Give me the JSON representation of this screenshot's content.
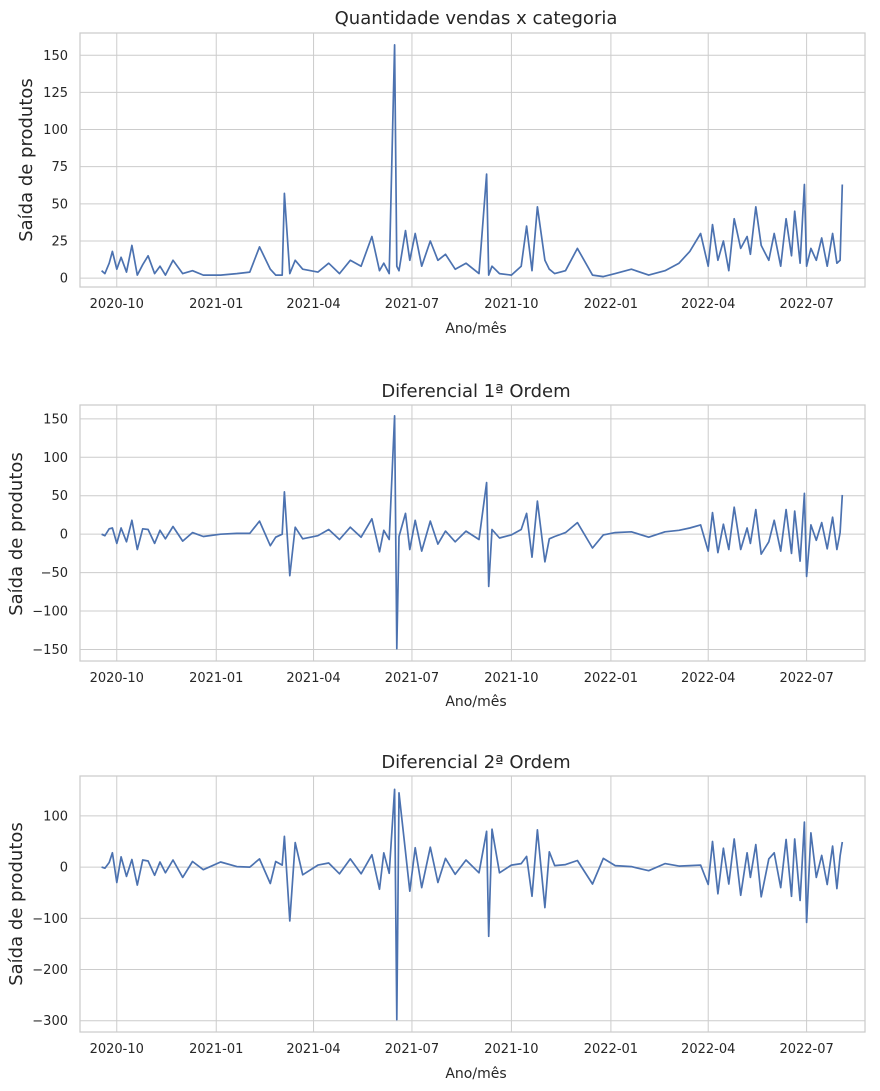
{
  "chart_data": [
    {
      "type": "line",
      "title": "Quantidade vendas x categoria",
      "xlabel": "Ano/mês",
      "ylabel": "Saída de produtos",
      "x_tick_labels": [
        "2020-10",
        "2021-01",
        "2021-04",
        "2021-07",
        "2021-10",
        "2022-01",
        "2022-04",
        "2022-07"
      ],
      "y_ticks": [
        0,
        25,
        50,
        75,
        100,
        125,
        150
      ],
      "ylim": [
        -6,
        165
      ],
      "xlim": [
        "2020-08-28",
        "2022-08-24"
      ],
      "grid": true,
      "series_color": "#4c72b0",
      "series": [
        {
          "x": [
            "2020-09-17",
            "2020-09-20",
            "2020-09-24",
            "2020-09-27",
            "2020-10-01",
            "2020-10-05",
            "2020-10-10",
            "2020-10-15",
            "2020-10-20",
            "2020-10-25",
            "2020-10-30",
            "2020-11-05",
            "2020-11-10",
            "2020-11-15",
            "2020-11-22",
            "2020-12-01",
            "2020-12-10",
            "2020-12-20",
            "2021-01-05",
            "2021-01-20",
            "2021-02-01",
            "2021-02-10",
            "2021-02-20",
            "2021-02-25",
            "2021-03-03",
            "2021-03-05",
            "2021-03-10",
            "2021-03-15",
            "2021-03-22",
            "2021-04-05",
            "2021-04-15",
            "2021-04-25",
            "2021-05-05",
            "2021-05-15",
            "2021-05-25",
            "2021-06-01",
            "2021-06-05",
            "2021-06-10",
            "2021-06-15",
            "2021-06-17",
            "2021-06-19",
            "2021-06-25",
            "2021-06-29",
            "2021-07-04",
            "2021-07-10",
            "2021-07-18",
            "2021-07-25",
            "2021-08-01",
            "2021-08-10",
            "2021-08-20",
            "2021-09-01",
            "2021-09-08",
            "2021-09-10",
            "2021-09-13",
            "2021-09-20",
            "2021-10-01",
            "2021-10-10",
            "2021-10-15",
            "2021-10-20",
            "2021-10-25",
            "2021-11-01",
            "2021-11-05",
            "2021-11-10",
            "2021-11-20",
            "2021-12-01",
            "2021-12-15",
            "2021-12-25",
            "2022-01-05",
            "2022-01-20",
            "2022-02-05",
            "2022-02-20",
            "2022-03-05",
            "2022-03-15",
            "2022-03-25",
            "2022-04-01",
            "2022-04-05",
            "2022-04-10",
            "2022-04-15",
            "2022-04-20",
            "2022-04-25",
            "2022-05-01",
            "2022-05-07",
            "2022-05-10",
            "2022-05-15",
            "2022-05-20",
            "2022-05-27",
            "2022-06-01",
            "2022-06-07",
            "2022-06-12",
            "2022-06-17",
            "2022-06-20",
            "2022-06-25",
            "2022-06-29",
            "2022-07-01",
            "2022-07-05",
            "2022-07-10",
            "2022-07-15",
            "2022-07-20",
            "2022-07-25",
            "2022-07-29",
            "2022-08-01",
            "2022-08-03"
          ],
          "values": [
            5,
            3,
            10,
            18,
            6,
            14,
            4,
            22,
            2,
            9,
            15,
            3,
            8,
            2,
            12,
            3,
            5,
            2,
            2,
            3,
            4,
            21,
            6,
            2,
            2,
            57,
            3,
            12,
            6,
            4,
            10,
            3,
            12,
            8,
            28,
            5,
            10,
            3,
            157,
            8,
            5,
            32,
            12,
            30,
            8,
            25,
            12,
            16,
            6,
            10,
            3,
            70,
            2,
            8,
            3,
            2,
            8,
            35,
            5,
            48,
            12,
            6,
            3,
            5,
            20,
            2,
            1,
            3,
            6,
            2,
            5,
            10,
            18,
            30,
            8,
            36,
            12,
            25,
            5,
            40,
            20,
            28,
            16,
            48,
            22,
            12,
            30,
            8,
            40,
            15,
            45,
            10,
            63,
            8,
            20,
            12,
            27,
            8,
            30,
            10,
            12,
            63
          ]
        }
      ]
    },
    {
      "type": "line",
      "title": "Diferencial 1ª Ordem",
      "xlabel": "Ano/mês",
      "ylabel": "Saída de produtos",
      "x_tick_labels": [
        "2020-10",
        "2021-01",
        "2021-04",
        "2021-07",
        "2021-10",
        "2022-01",
        "2022-04",
        "2022-07"
      ],
      "y_ticks": [
        -150,
        -100,
        -50,
        0,
        50,
        100,
        150
      ],
      "ylim": [
        -165,
        168
      ],
      "xlim": [
        "2020-08-28",
        "2022-08-24"
      ],
      "grid": true,
      "series_color": "#4c72b0",
      "series": [
        {
          "x": [
            "2020-09-17",
            "2020-09-20",
            "2020-09-24",
            "2020-09-27",
            "2020-10-01",
            "2020-10-05",
            "2020-10-10",
            "2020-10-15",
            "2020-10-20",
            "2020-10-25",
            "2020-10-30",
            "2020-11-05",
            "2020-11-10",
            "2020-11-15",
            "2020-11-22",
            "2020-12-01",
            "2020-12-10",
            "2020-12-20",
            "2021-01-05",
            "2021-01-20",
            "2021-02-01",
            "2021-02-10",
            "2021-02-20",
            "2021-02-25",
            "2021-03-03",
            "2021-03-05",
            "2021-03-10",
            "2021-03-15",
            "2021-03-22",
            "2021-04-05",
            "2021-04-15",
            "2021-04-25",
            "2021-05-05",
            "2021-05-15",
            "2021-05-25",
            "2021-06-01",
            "2021-06-05",
            "2021-06-10",
            "2021-06-15",
            "2021-06-17",
            "2021-06-19",
            "2021-06-25",
            "2021-06-29",
            "2021-07-04",
            "2021-07-10",
            "2021-07-18",
            "2021-07-25",
            "2021-08-01",
            "2021-08-10",
            "2021-08-20",
            "2021-09-01",
            "2021-09-08",
            "2021-09-10",
            "2021-09-13",
            "2021-09-20",
            "2021-10-01",
            "2021-10-10",
            "2021-10-15",
            "2021-10-20",
            "2021-10-25",
            "2021-11-01",
            "2021-11-05",
            "2021-11-10",
            "2021-11-20",
            "2021-12-01",
            "2021-12-15",
            "2021-12-25",
            "2022-01-05",
            "2022-01-20",
            "2022-02-05",
            "2022-02-20",
            "2022-03-05",
            "2022-03-15",
            "2022-03-25",
            "2022-04-01",
            "2022-04-05",
            "2022-04-10",
            "2022-04-15",
            "2022-04-20",
            "2022-04-25",
            "2022-05-01",
            "2022-05-07",
            "2022-05-10",
            "2022-05-15",
            "2022-05-20",
            "2022-05-27",
            "2022-06-01",
            "2022-06-07",
            "2022-06-12",
            "2022-06-17",
            "2022-06-20",
            "2022-06-25",
            "2022-06-29",
            "2022-07-01",
            "2022-07-05",
            "2022-07-10",
            "2022-07-15",
            "2022-07-20",
            "2022-07-25",
            "2022-07-29",
            "2022-08-01",
            "2022-08-03"
          ],
          "values": [
            0,
            -2,
            7,
            8,
            -12,
            8,
            -10,
            18,
            -20,
            7,
            6,
            -12,
            5,
            -6,
            10,
            -9,
            2,
            -3,
            0,
            1,
            1,
            17,
            -15,
            -4,
            0,
            55,
            -54,
            9,
            -6,
            -2,
            6,
            -7,
            9,
            -4,
            20,
            -23,
            5,
            -7,
            154,
            -149,
            -3,
            27,
            -20,
            18,
            -22,
            17,
            -13,
            4,
            -10,
            4,
            -7,
            67,
            -68,
            6,
            -5,
            -1,
            6,
            27,
            -30,
            43,
            -36,
            -6,
            -3,
            2,
            15,
            -18,
            -1,
            2,
            3,
            -4,
            3,
            5,
            8,
            12,
            -22,
            28,
            -24,
            13,
            -20,
            35,
            -20,
            8,
            -12,
            32,
            -26,
            -10,
            18,
            -22,
            32,
            -25,
            30,
            -35,
            53,
            -55,
            12,
            -8,
            15,
            -19,
            22,
            -20,
            2,
            51
          ]
        }
      ]
    },
    {
      "type": "line",
      "title": "Diferencial 2ª Ordem",
      "xlabel": "Ano/mês",
      "ylabel": "Saída de produtos",
      "x_tick_labels": [
        "2020-10",
        "2021-01",
        "2021-04",
        "2021-07",
        "2021-10",
        "2022-01",
        "2022-04",
        "2022-07"
      ],
      "y_ticks": [
        -300,
        -200,
        -100,
        0,
        100
      ],
      "ylim": [
        -322,
        178
      ],
      "xlim": [
        "2020-08-28",
        "2022-08-24"
      ],
      "grid": true,
      "series_color": "#4c72b0",
      "series": [
        {
          "x": [
            "2020-09-17",
            "2020-09-20",
            "2020-09-24",
            "2020-09-27",
            "2020-10-01",
            "2020-10-05",
            "2020-10-10",
            "2020-10-15",
            "2020-10-20",
            "2020-10-25",
            "2020-10-30",
            "2020-11-05",
            "2020-11-10",
            "2020-11-15",
            "2020-11-22",
            "2020-12-01",
            "2020-12-10",
            "2020-12-20",
            "2021-01-05",
            "2021-01-20",
            "2021-02-01",
            "2021-02-10",
            "2021-02-20",
            "2021-02-25",
            "2021-03-03",
            "2021-03-05",
            "2021-03-10",
            "2021-03-15",
            "2021-03-22",
            "2021-04-05",
            "2021-04-15",
            "2021-04-25",
            "2021-05-05",
            "2021-05-15",
            "2021-05-25",
            "2021-06-01",
            "2021-06-05",
            "2021-06-10",
            "2021-06-15",
            "2021-06-17",
            "2021-06-19",
            "2021-06-25",
            "2021-06-29",
            "2021-07-04",
            "2021-07-10",
            "2021-07-18",
            "2021-07-25",
            "2021-08-01",
            "2021-08-10",
            "2021-08-20",
            "2021-09-01",
            "2021-09-08",
            "2021-09-10",
            "2021-09-13",
            "2021-09-20",
            "2021-10-01",
            "2021-10-10",
            "2021-10-15",
            "2021-10-20",
            "2021-10-25",
            "2021-11-01",
            "2021-11-05",
            "2021-11-10",
            "2021-11-20",
            "2021-12-01",
            "2021-12-15",
            "2021-12-25",
            "2022-01-05",
            "2022-01-20",
            "2022-02-05",
            "2022-02-20",
            "2022-03-05",
            "2022-03-15",
            "2022-03-25",
            "2022-04-01",
            "2022-04-05",
            "2022-04-10",
            "2022-04-15",
            "2022-04-20",
            "2022-04-25",
            "2022-05-01",
            "2022-05-07",
            "2022-05-10",
            "2022-05-15",
            "2022-05-20",
            "2022-05-27",
            "2022-06-01",
            "2022-06-07",
            "2022-06-12",
            "2022-06-17",
            "2022-06-20",
            "2022-06-25",
            "2022-06-29",
            "2022-07-01",
            "2022-07-05",
            "2022-07-10",
            "2022-07-15",
            "2022-07-20",
            "2022-07-25",
            "2022-07-29",
            "2022-08-01",
            "2022-08-03"
          ],
          "values": [
            0,
            -2,
            9,
            28,
            -30,
            20,
            -18,
            15,
            -35,
            14,
            12,
            -16,
            10,
            -11,
            14,
            -20,
            11,
            -5,
            10,
            1,
            0,
            16,
            -32,
            11,
            4,
            60,
            -105,
            48,
            -15,
            4,
            8,
            -13,
            16,
            -13,
            24,
            -43,
            28,
            -12,
            152,
            -298,
            145,
            30,
            -47,
            38,
            -40,
            39,
            -30,
            17,
            -14,
            14,
            -11,
            70,
            -135,
            74,
            -11,
            4,
            7,
            21,
            -57,
            73,
            -79,
            30,
            3,
            5,
            13,
            -33,
            17,
            3,
            1,
            -7,
            7,
            2,
            3,
            4,
            -34,
            50,
            -52,
            37,
            -33,
            55,
            -55,
            28,
            -20,
            44,
            -58,
            16,
            28,
            -40,
            54,
            -57,
            55,
            -65,
            88,
            -108,
            67,
            -20,
            23,
            -34,
            41,
            -42,
            22,
            49
          ]
        }
      ]
    }
  ]
}
